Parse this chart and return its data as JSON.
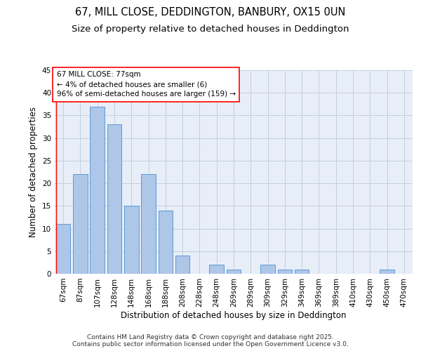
{
  "title": "67, MILL CLOSE, DEDDINGTON, BANBURY, OX15 0UN",
  "subtitle": "Size of property relative to detached houses in Deddington",
  "xlabel": "Distribution of detached houses by size in Deddington",
  "ylabel": "Number of detached properties",
  "categories": [
    "67sqm",
    "87sqm",
    "107sqm",
    "128sqm",
    "148sqm",
    "168sqm",
    "188sqm",
    "208sqm",
    "228sqm",
    "248sqm",
    "269sqm",
    "289sqm",
    "309sqm",
    "329sqm",
    "349sqm",
    "369sqm",
    "389sqm",
    "410sqm",
    "430sqm",
    "450sqm",
    "470sqm"
  ],
  "values": [
    11,
    22,
    37,
    33,
    15,
    22,
    14,
    4,
    0,
    2,
    1,
    0,
    2,
    1,
    1,
    0,
    0,
    0,
    0,
    1,
    0
  ],
  "bar_color": "#aec6e8",
  "bar_edge_color": "#5b9bd5",
  "background_color": "#e8eef8",
  "grid_color": "#c0c8d8",
  "annotation_text": "67 MILL CLOSE: 77sqm\n← 4% of detached houses are smaller (6)\n96% of semi-detached houses are larger (159) →",
  "annotation_box_color": "white",
  "annotation_box_edge_color": "red",
  "marker_line_color": "red",
  "ylim": [
    0,
    45
  ],
  "yticks": [
    0,
    5,
    10,
    15,
    20,
    25,
    30,
    35,
    40,
    45
  ],
  "footer_line1": "Contains HM Land Registry data © Crown copyright and database right 2025.",
  "footer_line2": "Contains public sector information licensed under the Open Government Licence v3.0.",
  "title_fontsize": 10.5,
  "subtitle_fontsize": 9.5,
  "xlabel_fontsize": 8.5,
  "ylabel_fontsize": 8.5,
  "tick_fontsize": 7.5,
  "annotation_fontsize": 7.5,
  "footer_fontsize": 6.5
}
